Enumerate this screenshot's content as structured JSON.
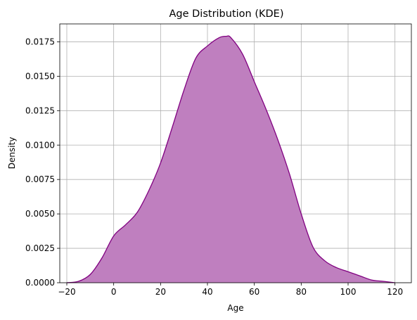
{
  "chart_data": {
    "type": "area",
    "title": "Age Distribution (KDE)",
    "xlabel": "Age",
    "ylabel": "Density",
    "xlim": [
      -23,
      127
    ],
    "ylim": [
      0,
      0.0188
    ],
    "grid": true,
    "x_ticks": [
      -20,
      0,
      20,
      40,
      60,
      80,
      100,
      120
    ],
    "x_tick_labels": [
      "−20",
      "0",
      "20",
      "40",
      "60",
      "80",
      "100",
      "120"
    ],
    "y_ticks": [
      0,
      0.0025,
      0.005,
      0.0075,
      0.01,
      0.0125,
      0.015,
      0.0175
    ],
    "y_tick_labels": [
      "0.0000",
      "0.0025",
      "0.0050",
      "0.0075",
      "0.0100",
      "0.0125",
      "0.0150",
      "0.0175"
    ],
    "series": [
      {
        "color": "#800080",
        "fill_color": "#bf7fbf",
        "x": [
          -20,
          -15,
          -10,
          -5,
          0,
          5,
          10,
          15,
          20,
          25,
          30,
          35,
          40,
          45,
          48,
          50,
          55,
          60,
          65,
          70,
          75,
          80,
          85,
          90,
          95,
          100,
          105,
          110,
          115,
          120
        ],
        "y": [
          0.0,
          0.0001,
          0.0006,
          0.0018,
          0.0034,
          0.0042,
          0.0051,
          0.0067,
          0.0087,
          0.0113,
          0.014,
          0.0163,
          0.0172,
          0.0178,
          0.0179,
          0.0178,
          0.0166,
          0.0146,
          0.0126,
          0.0104,
          0.0079,
          0.005,
          0.0026,
          0.0016,
          0.0011,
          0.0008,
          0.0005,
          0.0002,
          0.0001,
          0.0
        ]
      }
    ]
  }
}
